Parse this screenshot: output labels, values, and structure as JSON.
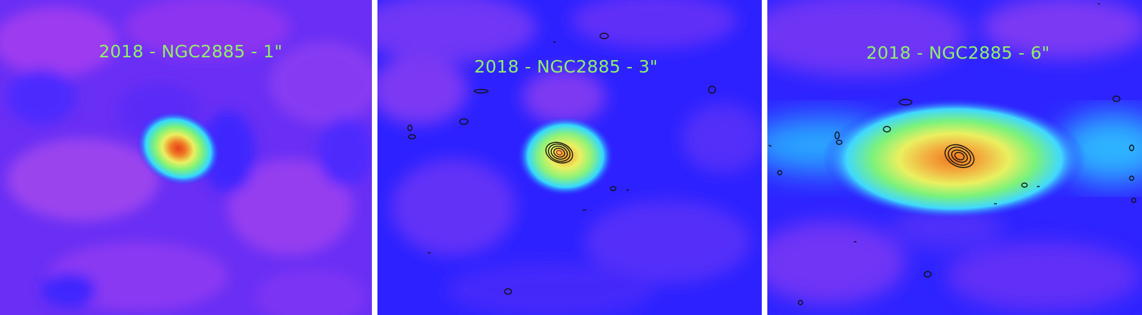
{
  "panels": [
    {
      "label": "2018 - NGC2885 - 1\""
    },
    {
      "label": "2018 - NGC2885 - 3\""
    },
    {
      "label": "2018 - NGC2885 - 6\""
    }
  ],
  "colors": {
    "background_blue": "#2a22ff",
    "violet": "#8a3cf2",
    "label_green": "#8ef06a",
    "separator": "#ffffff"
  }
}
